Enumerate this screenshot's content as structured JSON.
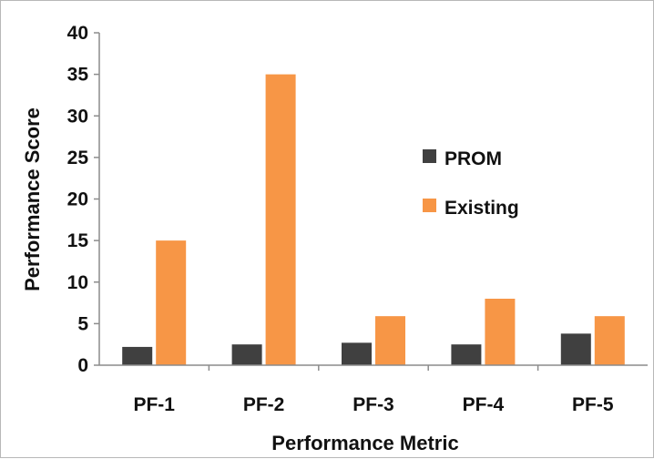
{
  "chart_data": {
    "type": "bar",
    "title": "",
    "xlabel": "Performance Metric",
    "ylabel": "Performance Score",
    "categories": [
      "PF-1",
      "PF-2",
      "PF-3",
      "PF-4",
      "PF-5"
    ],
    "series": [
      {
        "name": "PROM",
        "color": "#404040",
        "values": [
          2.2,
          2.5,
          2.7,
          2.5,
          3.8
        ]
      },
      {
        "name": "Existing",
        "color": "#f79646",
        "values": [
          15,
          35,
          5.9,
          8,
          5.9
        ]
      }
    ],
    "ylim": [
      0,
      40
    ],
    "yticks": [
      "0",
      "5",
      "10",
      "15",
      "20",
      "25",
      "30",
      "35",
      "40"
    ],
    "grid": false,
    "legend_position": "right-center"
  }
}
